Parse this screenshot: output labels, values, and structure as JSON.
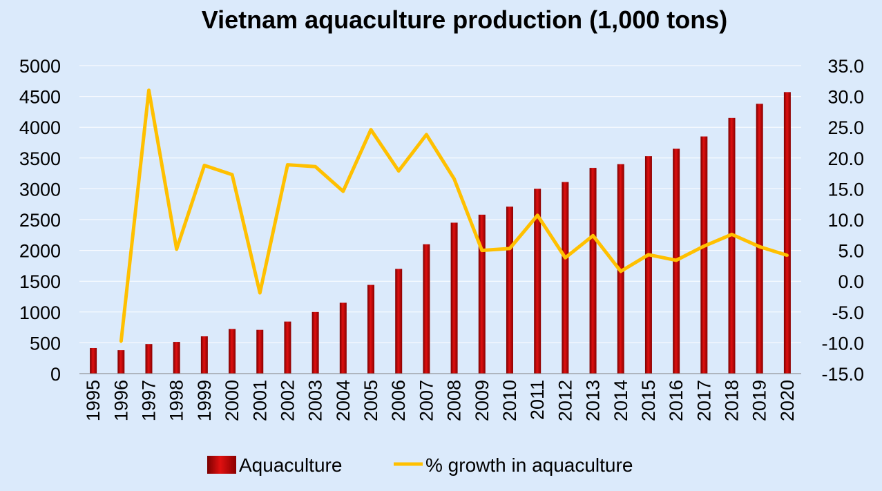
{
  "chart_data": {
    "type": "bar+line",
    "title": "Vietnam aquaculture production (1,000 tons)",
    "categories": [
      "1995",
      "1996",
      "1997",
      "1998",
      "1999",
      "2000",
      "2001",
      "2002",
      "2003",
      "2004",
      "2005",
      "2006",
      "2007",
      "2008",
      "2009",
      "2010",
      "2011",
      "2012",
      "2013",
      "2014",
      "2015",
      "2016",
      "2017",
      "2018",
      "2019",
      "2020"
    ],
    "series": [
      {
        "name": "Aquaculture",
        "type": "bar",
        "axis": "left",
        "color": "#c00000",
        "values": [
          415,
          380,
          480,
          515,
          605,
          725,
          710,
          845,
          1000,
          1150,
          1440,
          1700,
          2100,
          2450,
          2580,
          2710,
          3000,
          3110,
          3340,
          3400,
          3530,
          3650,
          3850,
          4150,
          4380,
          4570
        ]
      },
      {
        "name": "% growth in aquaculture",
        "type": "line",
        "axis": "right",
        "color": "#ffc000",
        "values": [
          null,
          -9.8,
          31.0,
          5.2,
          18.8,
          17.3,
          -1.9,
          18.9,
          18.6,
          14.6,
          24.6,
          17.9,
          23.8,
          16.6,
          5.0,
          5.3,
          10.7,
          3.8,
          7.4,
          1.6,
          4.3,
          3.4,
          5.7,
          7.6,
          5.6,
          4.2
        ]
      }
    ],
    "y_left": {
      "min": 0,
      "max": 5000,
      "step": 500,
      "tick_labels": [
        "0",
        "500",
        "1000",
        "1500",
        "2000",
        "2500",
        "3000",
        "3500",
        "4000",
        "4500",
        "5000"
      ]
    },
    "y_right": {
      "min": -15,
      "max": 35,
      "step": 5,
      "tick_labels": [
        "-15.0",
        "-10.0",
        "-5.0",
        "0.0",
        "5.0",
        "10.0",
        "15.0",
        "20.0",
        "25.0",
        "30.0",
        "35.0"
      ]
    },
    "grid": true,
    "legend_position": "bottom",
    "background": "#dbeafb"
  }
}
